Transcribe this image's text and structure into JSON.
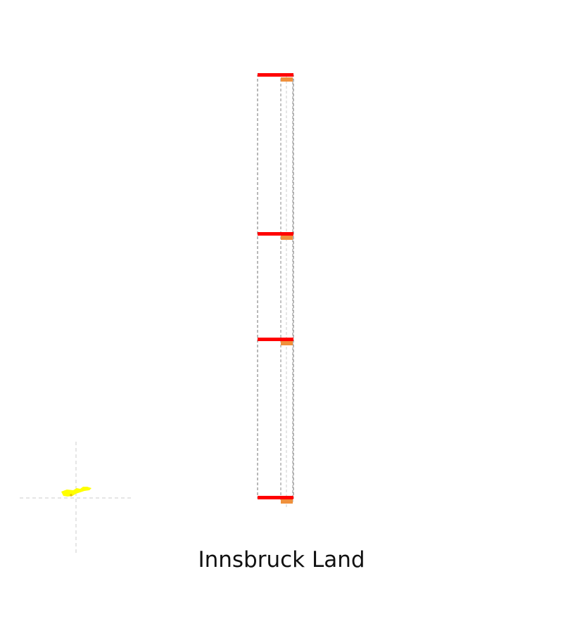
{
  "caption": "Innsbruck Land",
  "colors": {
    "frame": "#888888",
    "guide": "#cccccc",
    "crosshair": "#cccccc",
    "bar_primary": "#ff0000",
    "bar_secondary": "#f0903c",
    "blob": "#ffff00",
    "blob_accent": "#e8c400"
  },
  "icons": {
    "locator": "region-locator-icon"
  }
}
